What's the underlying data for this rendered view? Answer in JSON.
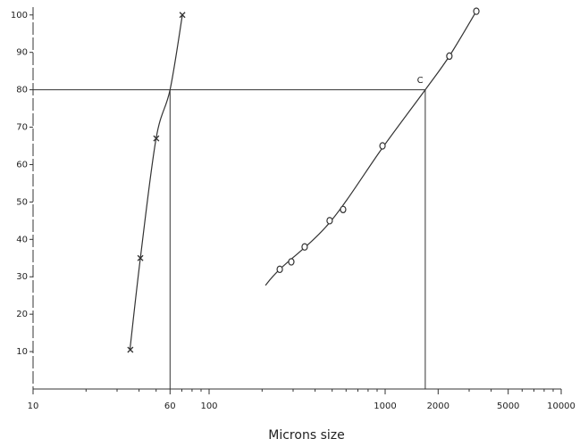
{
  "chart_data": {
    "type": "scatter",
    "xlabel": "Microns size",
    "xscale": "log",
    "xlim": [
      10,
      10000
    ],
    "ylim": [
      0,
      104
    ],
    "xticks": [
      10,
      60,
      100,
      1000,
      2000,
      5000,
      10000
    ],
    "xminorticks": [
      20,
      30,
      40,
      50,
      70,
      80,
      90,
      200,
      300,
      400,
      500,
      600,
      700,
      800,
      900,
      3000,
      4000,
      6000,
      7000,
      8000,
      9000
    ],
    "yticks": [
      10,
      20,
      30,
      40,
      50,
      60,
      70,
      80,
      90,
      100
    ],
    "series": [
      {
        "marker": "x",
        "color": "#333",
        "x": [
          35.7,
          40.7,
          50.1,
          70.5
        ],
        "values": [
          10.5,
          35,
          67,
          100
        ]
      },
      {
        "marker": "o",
        "color": "#333",
        "x": [
          252,
          293,
          349,
          484,
          577,
          966,
          2316,
          3296
        ],
        "values": [
          32,
          34,
          38,
          45,
          48,
          65,
          89,
          101
        ]
      }
    ],
    "fits": [
      {
        "x": [
          35.5,
          40.7,
          50,
          60,
          70.5
        ],
        "y": [
          10.5,
          35,
          67,
          80,
          100
        ]
      },
      {
        "x": [
          209,
          252,
          484,
          966,
          1690,
          2316,
          3296
        ],
        "y": [
          27.7,
          32,
          44.5,
          64.5,
          80,
          89,
          101
        ]
      }
    ],
    "reference_y": 80,
    "reference_x": [
      60,
      1690
    ],
    "annotations": [
      {
        "text": "C",
        "x": 1580,
        "y": 82.5
      }
    ]
  }
}
